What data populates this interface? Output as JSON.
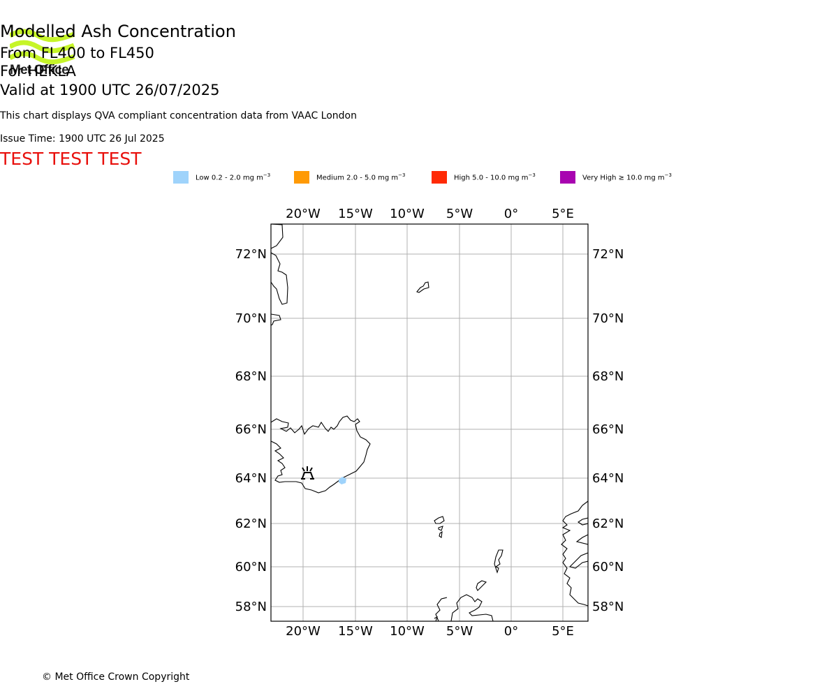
{
  "logo": {
    "text": "Met Office"
  },
  "title": {
    "main": "Modelled Ash Concentration",
    "levels": "From FL400 to FL450",
    "volcano": "For HEKLA",
    "valid": "Valid at 1900 UTC 26/07/2025"
  },
  "subtitle": "This chart displays QVA compliant concentration data from VAAC London",
  "issue_time": "Issue Time: 1900 UTC 26 Jul 2025",
  "test_banner": "TEST TEST TEST",
  "legend": [
    {
      "label": "Low 0.2 - 2.0 mg m",
      "color": "#9fd3fb"
    },
    {
      "label": "Medium 2.0 - 5.0 mg m",
      "color": "#ff9a05"
    },
    {
      "label": "High 5.0 - 10.0 mg m",
      "color": "#ff2a05"
    },
    {
      "label": "Very High ≥ 10.0 mg m",
      "color": "#a804b0"
    }
  ],
  "legend_unit_exponent": "−3",
  "map": {
    "lon_ticks": [
      "20°W",
      "15°W",
      "10°W",
      "5°W",
      "0°",
      "5°E"
    ],
    "lat_ticks": [
      "72°N",
      "70°N",
      "68°N",
      "66°N",
      "64°N",
      "62°N",
      "60°N",
      "58°N"
    ],
    "volcano_marker": {
      "name": "HEKLA",
      "lon": -19.7,
      "lat": 64.0,
      "icon": "volcano-icon"
    },
    "ash_areas": [
      {
        "level": "Low",
        "lon": -16.1,
        "lat": 63.9,
        "color": "#9fd3fb"
      }
    ]
  },
  "copyright": "© Met Office Crown Copyright"
}
